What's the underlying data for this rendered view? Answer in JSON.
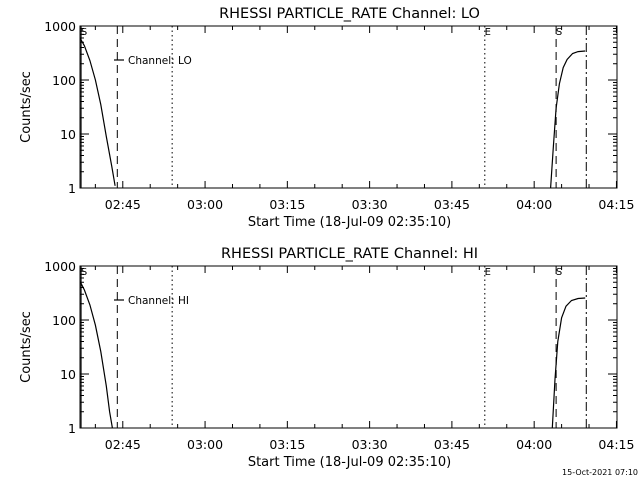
{
  "chart_data": [
    {
      "type": "line",
      "title": "RHESSI PARTICLE_RATE Channel: LO",
      "xlabel": "Start Time (18-Jul-09 02:35:10)",
      "ylabel": "Counts/sec",
      "yscale": "log",
      "ylim": [
        1,
        1000
      ],
      "xlim_minutes": [
        2.2,
        100.1
      ],
      "x_ticks": [
        {
          "t": 10,
          "label": "02:45"
        },
        {
          "t": 25,
          "label": "03:00"
        },
        {
          "t": 40,
          "label": "03:15"
        },
        {
          "t": 55,
          "label": "03:30"
        },
        {
          "t": 70,
          "label": "03:45"
        },
        {
          "t": 85,
          "label": "04:00"
        },
        {
          "t": 100,
          "label": "04:15"
        }
      ],
      "y_ticks": [
        {
          "v": 1,
          "label": "1"
        },
        {
          "v": 10,
          "label": "10"
        },
        {
          "v": 100,
          "label": "100"
        },
        {
          "v": 1000,
          "label": "1000"
        }
      ],
      "legend": {
        "label": "Channel: LO",
        "position": "top-left"
      },
      "markers": [
        {
          "t": 2.4,
          "style": "solid",
          "label": "S"
        },
        {
          "t": 9.0,
          "style": "dashed",
          "label": ""
        },
        {
          "t": 19.0,
          "style": "dotted",
          "label": ""
        },
        {
          "t": 76.0,
          "style": "dotted",
          "label": "E"
        },
        {
          "t": 89.0,
          "style": "dashed",
          "label": "S"
        },
        {
          "t": 94.5,
          "style": "dashdot",
          "label": ""
        }
      ],
      "series": [
        {
          "name": "Channel: LO",
          "segments": [
            [
              [
                2.2,
                600
              ],
              [
                3,
                430
              ],
              [
                4,
                230
              ],
              [
                5,
                100
              ],
              [
                6,
                35
              ],
              [
                7,
                9
              ],
              [
                8,
                2.5
              ],
              [
                8.6,
                1.1
              ]
            ],
            [
              [
                88,
                1
              ],
              [
                88.5,
                6
              ],
              [
                89,
                30
              ],
              [
                89.6,
                85
              ],
              [
                90.3,
                170
              ],
              [
                91,
                240
              ],
              [
                92,
                310
              ],
              [
                93,
                335
              ],
              [
                94.3,
                345
              ]
            ]
          ]
        }
      ]
    },
    {
      "type": "line",
      "title": "RHESSI PARTICLE_RATE Channel: HI",
      "xlabel": "Start Time (18-Jul-09 02:35:10)",
      "ylabel": "Counts/sec",
      "yscale": "log",
      "ylim": [
        1,
        1000
      ],
      "xlim_minutes": [
        2.2,
        100.1
      ],
      "x_ticks": [
        {
          "t": 10,
          "label": "02:45"
        },
        {
          "t": 25,
          "label": "03:00"
        },
        {
          "t": 40,
          "label": "03:15"
        },
        {
          "t": 55,
          "label": "03:30"
        },
        {
          "t": 70,
          "label": "03:45"
        },
        {
          "t": 85,
          "label": "04:00"
        },
        {
          "t": 100,
          "label": "04:15"
        }
      ],
      "y_ticks": [
        {
          "v": 1,
          "label": "1"
        },
        {
          "v": 10,
          "label": "10"
        },
        {
          "v": 100,
          "label": "100"
        },
        {
          "v": 1000,
          "label": "1000"
        }
      ],
      "legend": {
        "label": "Channel: HI",
        "position": "top-left"
      },
      "markers": [
        {
          "t": 2.4,
          "style": "solid",
          "label": "S"
        },
        {
          "t": 9.0,
          "style": "dashed",
          "label": ""
        },
        {
          "t": 19.0,
          "style": "dotted",
          "label": ""
        },
        {
          "t": 76.0,
          "style": "dotted",
          "label": "E"
        },
        {
          "t": 89.0,
          "style": "dashed",
          "label": "S"
        },
        {
          "t": 94.5,
          "style": "dashdot",
          "label": ""
        }
      ],
      "series": [
        {
          "name": "Channel: HI",
          "segments": [
            [
              [
                2.2,
                520
              ],
              [
                3,
                360
              ],
              [
                4,
                190
              ],
              [
                5,
                80
              ],
              [
                6,
                26
              ],
              [
                7,
                6
              ],
              [
                7.6,
                2
              ],
              [
                8.1,
                1
              ]
            ],
            [
              [
                88.3,
                1
              ],
              [
                88.8,
                8
              ],
              [
                89.3,
                40
              ],
              [
                90,
                110
              ],
              [
                90.8,
                180
              ],
              [
                91.8,
                230
              ],
              [
                93,
                250
              ],
              [
                94.3,
                255
              ]
            ]
          ]
        }
      ]
    }
  ],
  "footer": {
    "timestamp": "15-Oct-2021 07:10"
  }
}
